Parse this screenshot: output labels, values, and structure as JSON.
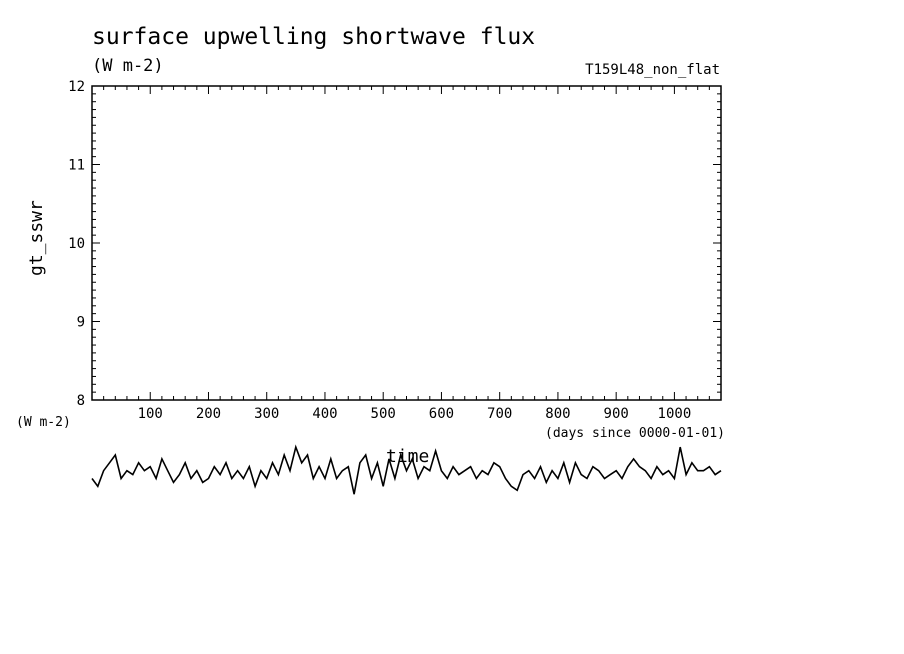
{
  "chart_data": {
    "type": "line",
    "title": "surface upwelling shortwave flux",
    "units": "(W m-2)",
    "run_label": "T159L48_non_flat",
    "ylabel": "gt_sswr",
    "y_units_label": "(W m-2)",
    "xlabel": "time",
    "x_units_label": "(days since 0000-01-01)",
    "xlim": [
      0,
      1080
    ],
    "ylim": [
      8,
      12
    ],
    "x_ticks": [
      100,
      200,
      300,
      400,
      500,
      600,
      700,
      800,
      900,
      1000
    ],
    "y_ticks": [
      8,
      9,
      10,
      11,
      12
    ],
    "grid": false,
    "series": [
      {
        "x": [
          0,
          10,
          20,
          30,
          40,
          50,
          60,
          70,
          80,
          90,
          100,
          110,
          120,
          130,
          140,
          150,
          160,
          170,
          180,
          190,
          200,
          210,
          220,
          230,
          240,
          250,
          260,
          270,
          280,
          290,
          300,
          310,
          320,
          330,
          340,
          350,
          360,
          370,
          380,
          390,
          400,
          410,
          420,
          430,
          440,
          450,
          460,
          470,
          480,
          490,
          500,
          510,
          520,
          530,
          540,
          550,
          560,
          570,
          580,
          590,
          600,
          610,
          620,
          630,
          640,
          650,
          660,
          670,
          680,
          690,
          700,
          710,
          720,
          730,
          740,
          750,
          760,
          770,
          780,
          790,
          800,
          810,
          820,
          830,
          840,
          850,
          860,
          870,
          880,
          890,
          900,
          910,
          920,
          930,
          940,
          950,
          960,
          970,
          980,
          990,
          1000,
          1010,
          1020,
          1030,
          1040,
          1050,
          1060,
          1070,
          1080
        ],
        "y": [
          7.0,
          6.9,
          7.1,
          7.2,
          7.3,
          7.0,
          7.1,
          7.05,
          7.2,
          7.1,
          7.15,
          7.0,
          7.25,
          7.1,
          6.95,
          7.05,
          7.2,
          7.0,
          7.1,
          6.95,
          7.0,
          7.15,
          7.05,
          7.2,
          7.0,
          7.1,
          7.0,
          7.15,
          6.9,
          7.1,
          7.0,
          7.2,
          7.05,
          7.3,
          7.1,
          7.4,
          7.2,
          7.3,
          7.0,
          7.15,
          7.0,
          7.25,
          7.0,
          7.1,
          7.15,
          6.8,
          7.2,
          7.3,
          7.0,
          7.2,
          6.9,
          7.25,
          7.0,
          7.3,
          7.1,
          7.25,
          7.0,
          7.15,
          7.1,
          7.35,
          7.1,
          7.0,
          7.15,
          7.05,
          7.1,
          7.15,
          7.0,
          7.1,
          7.05,
          7.2,
          7.15,
          7.0,
          6.9,
          6.85,
          7.05,
          7.1,
          7.0,
          7.15,
          6.95,
          7.1,
          7.0,
          7.2,
          6.95,
          7.2,
          7.05,
          7.0,
          7.15,
          7.1,
          7.0,
          7.05,
          7.1,
          7.0,
          7.15,
          7.25,
          7.15,
          7.1,
          7.0,
          7.15,
          7.05,
          7.1,
          7.0,
          7.4,
          7.05,
          7.2,
          7.1,
          7.1,
          7.15,
          7.05,
          7.1
        ]
      }
    ]
  }
}
